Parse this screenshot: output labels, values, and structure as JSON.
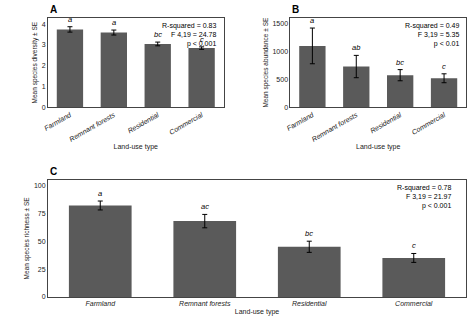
{
  "chart_data": [
    {
      "type": "bar",
      "title": "A",
      "categories": [
        "Farmland",
        "Remnant forests",
        "Residential",
        "Commercial"
      ],
      "values": [
        3.75,
        3.6,
        3.05,
        2.85
      ],
      "errors": [
        0.13,
        0.12,
        0.09,
        0.06
      ],
      "color": "#5a5a5a",
      "xlabel": "Land-use type",
      "ylabel": "Mean species diversity ± SE",
      "ylim": [
        0,
        4.3
      ],
      "yticks": [
        0,
        1,
        2,
        3,
        4
      ],
      "grid": false,
      "annotations": [
        {
          "category": "Farmland",
          "text": "a"
        },
        {
          "category": "Remnant forests",
          "text": "a"
        },
        {
          "category": "Residential",
          "text": "bc"
        },
        {
          "category": "Commercial",
          "text": "c"
        },
        {
          "text": "R-squared = 0.83\nF 4,19 = 24.78\np < 0.001"
        }
      ]
    },
    {
      "type": "bar",
      "title": "B",
      "categories": [
        "Farmland",
        "Remnant forests",
        "Residential",
        "Commercial"
      ],
      "values": [
        1100,
        730,
        575,
        520
      ],
      "errors": [
        320,
        200,
        100,
        80
      ],
      "color": "#5a5a5a",
      "xlabel": "Land-use type",
      "ylabel": "Mean species abundance ± SE",
      "ylim": [
        0,
        1600
      ],
      "yticks": [
        0,
        500,
        1000,
        1500
      ],
      "grid": false,
      "annotations": [
        {
          "category": "Farmland",
          "text": "a"
        },
        {
          "category": "Remnant forests",
          "text": "ab"
        },
        {
          "category": "Residential",
          "text": "bc"
        },
        {
          "category": "Commercial",
          "text": "c"
        },
        {
          "text": "R-squared = 0.49\nF 3,19 = 5.35\np < 0.01"
        }
      ]
    },
    {
      "type": "bar",
      "title": "C",
      "categories": [
        "Farmland",
        "Remnant forests",
        "Residential",
        "Commercial"
      ],
      "values": [
        82,
        68,
        45,
        35
      ],
      "errors": [
        4,
        6,
        5,
        4
      ],
      "color": "#5a5a5a",
      "xlabel": "Land-use type",
      "ylabel": "Mean species richness ± SE",
      "ylim": [
        0,
        105
      ],
      "yticks": [
        0,
        25,
        50,
        75,
        100
      ],
      "grid": false,
      "annotations": [
        {
          "category": "Farmland",
          "text": "a"
        },
        {
          "category": "Remnant forests",
          "text": "ac"
        },
        {
          "category": "Residential",
          "text": "bc"
        },
        {
          "category": "Commercial",
          "text": "c"
        },
        {
          "text": "R-squared = 0.78\nF 3,19 = 21.97\np < 0.001"
        }
      ]
    }
  ]
}
